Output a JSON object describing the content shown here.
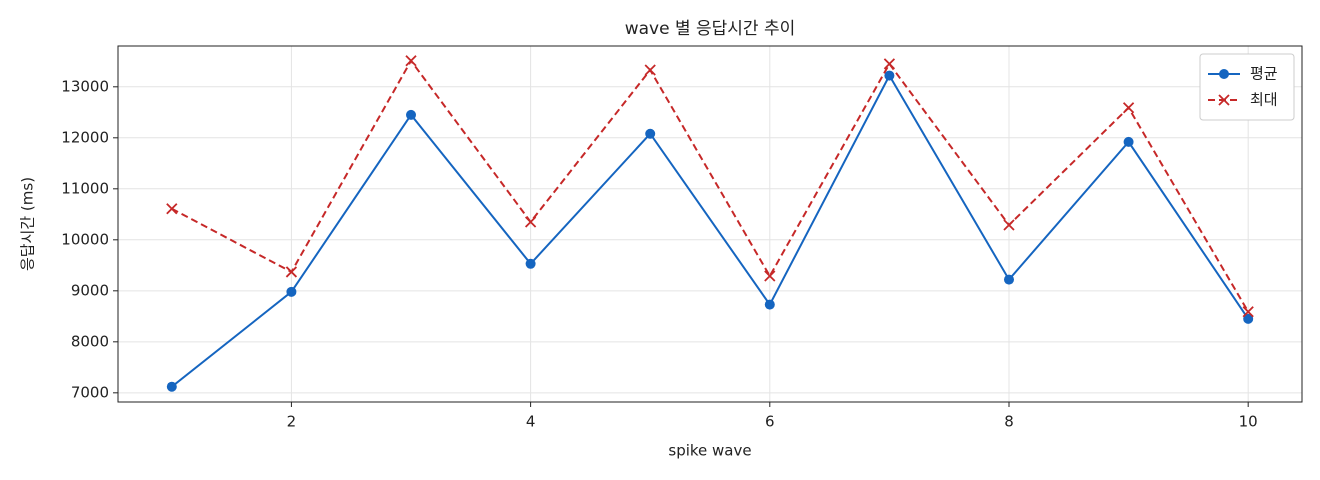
{
  "chart_data": {
    "type": "line",
    "title": "wave 별 응답시간 추이",
    "x_label": "spike wave",
    "y_label": "응답시간 (ms)",
    "x": [
      1,
      2,
      3,
      4,
      5,
      6,
      7,
      8,
      9,
      10
    ],
    "series": [
      {
        "name": "평균",
        "color": "#1565c0",
        "marker": "circle",
        "dash": "solid",
        "values": [
          7120,
          8980,
          12450,
          9530,
          12080,
          8730,
          13220,
          9220,
          11920,
          8450
        ]
      },
      {
        "name": "최대",
        "color": "#c62828",
        "marker": "x",
        "dash": "dashed",
        "values": [
          10610,
          9370,
          13510,
          10350,
          13330,
          9290,
          13450,
          10290,
          12590,
          8590
        ]
      }
    ],
    "xlim": [
      0.55,
      10.45
    ],
    "ylim": [
      6820,
      13800
    ],
    "xticks": [
      2,
      4,
      6,
      8,
      10
    ],
    "yticks": [
      7000,
      8000,
      9000,
      10000,
      11000,
      12000,
      13000
    ],
    "grid": true,
    "legend": "upper right"
  }
}
